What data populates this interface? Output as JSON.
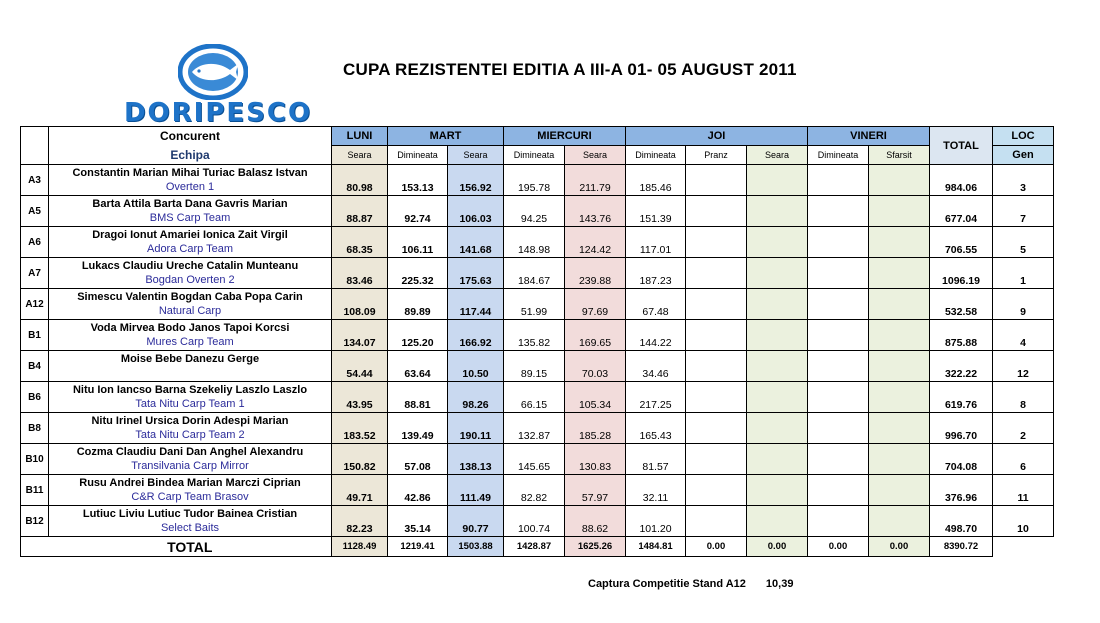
{
  "logo": {
    "brand": "DORIPESCO"
  },
  "title": "CUPA REZISTENTEI EDITIA A III-A  01- 05 AUGUST 2011",
  "headers": {
    "concurent": "Concurent",
    "echipa": "Echipa",
    "days": {
      "luni": "LUNI",
      "mart": "MART",
      "miercuri": "MIERCURI",
      "joi": "JOI",
      "vineri": "VINERI"
    },
    "total": "TOTAL",
    "loc": "LOC",
    "gen": "Gen",
    "sub": [
      "Seara",
      "Dimineata",
      "Seara",
      "Dimineata",
      "Seara",
      "Dimineata",
      "Pranz",
      "Seara",
      "Dimineata",
      "Sfarsit"
    ]
  },
  "rows": [
    {
      "code": "A3",
      "names": "Constantin Marian Mihai Turiac Balasz Istvan",
      "team": "Overten 1",
      "luni": "80.98",
      "mart_dim": "153.13",
      "mart_sea": "156.92",
      "mie_dim": "195.78",
      "mie_sea": "211.79",
      "joi_dim": "185.46",
      "total": "984.06",
      "loc": "3"
    },
    {
      "code": "A5",
      "names": "Barta Attila Barta Dana Gavris Marian",
      "team": "BMS Carp Team",
      "luni": "88.87",
      "mart_dim": "92.74",
      "mart_sea": "106.03",
      "mie_dim": "94.25",
      "mie_sea": "143.76",
      "joi_dim": "151.39",
      "total": "677.04",
      "loc": "7"
    },
    {
      "code": "A6",
      "names": "Dragoi Ionut Amariei Ionica Zait Virgil",
      "team": "Adora Carp Team",
      "luni": "68.35",
      "mart_dim": "106.11",
      "mart_sea": "141.68",
      "mie_dim": "148.98",
      "mie_sea": "124.42",
      "joi_dim": "117.01",
      "total": "706.55",
      "loc": "5"
    },
    {
      "code": "A7",
      "names": "Lukacs Claudiu Ureche Catalin Munteanu",
      "team": "Bogdan Overten 2",
      "luni": "83.46",
      "mart_dim": "225.32",
      "mart_sea": "175.63",
      "mie_dim": "184.67",
      "mie_sea": "239.88",
      "joi_dim": "187.23",
      "total": "1096.19",
      "loc": "1"
    },
    {
      "code": "A12",
      "names": "Simescu Valentin Bogdan Caba Popa Carin",
      "team": "Natural Carp",
      "luni": "108.09",
      "mart_dim": "89.89",
      "mart_sea": "117.44",
      "mie_dim": "51.99",
      "mie_sea": "97.69",
      "joi_dim": "67.48",
      "total": "532.58",
      "loc": "9"
    },
    {
      "code": "B1",
      "names": "Voda Mirvea Bodo Janos Tapoi Korcsi",
      "team": "Mures Carp Team",
      "luni": "134.07",
      "mart_dim": "125.20",
      "mart_sea": "166.92",
      "mie_dim": "135.82",
      "mie_sea": "169.65",
      "joi_dim": "144.22",
      "total": "875.88",
      "loc": "4"
    },
    {
      "code": "B4",
      "names": "Moise Bebe Danezu Gerge",
      "team": "",
      "luni": "54.44",
      "mart_dim": "63.64",
      "mart_sea": "10.50",
      "mie_dim": "89.15",
      "mie_sea": "70.03",
      "joi_dim": "34.46",
      "total": "322.22",
      "loc": "12"
    },
    {
      "code": "B6",
      "names": "Nitu Ion Iancso Barna Szekeliy Laszlo Laszlo",
      "team": "Tata Nitu Carp Team 1",
      "luni": "43.95",
      "mart_dim": "88.81",
      "mart_sea": "98.26",
      "mie_dim": "66.15",
      "mie_sea": "105.34",
      "joi_dim": "217.25",
      "total": "619.76",
      "loc": "8"
    },
    {
      "code": "B8",
      "names": "Nitu Irinel Ursica Dorin Adespi Marian",
      "team": "Tata Nitu Carp Team 2",
      "luni": "183.52",
      "mart_dim": "139.49",
      "mart_sea": "190.11",
      "mie_dim": "132.87",
      "mie_sea": "185.28",
      "joi_dim": "165.43",
      "total": "996.70",
      "loc": "2"
    },
    {
      "code": "B10",
      "names": "Cozma Claudiu Dani Dan Anghel Alexandru",
      "team": "Transilvania Carp Mirror",
      "luni": "150.82",
      "mart_dim": "57.08",
      "mart_sea": "138.13",
      "mie_dim": "145.65",
      "mie_sea": "130.83",
      "joi_dim": "81.57",
      "total": "704.08",
      "loc": "6"
    },
    {
      "code": "B11",
      "names": "Rusu Andrei Bindea Marian Marczi Ciprian",
      "team": "C&R Carp Team Brasov",
      "luni": "49.71",
      "mart_dim": "42.86",
      "mart_sea": "111.49",
      "mie_dim": "82.82",
      "mie_sea": "57.97",
      "joi_dim": "32.11",
      "total": "376.96",
      "loc": "11"
    },
    {
      "code": "B12",
      "names": "Lutiuc Liviu Lutiuc Tudor Bainea Cristian",
      "team": "Select Baits",
      "luni": "82.23",
      "mart_dim": "35.14",
      "mart_sea": "90.77",
      "mie_dim": "100.74",
      "mie_sea": "88.62",
      "joi_dim": "101.20",
      "total": "498.70",
      "loc": "10"
    }
  ],
  "totals": {
    "label": "TOTAL",
    "values": [
      "1128.49",
      "1219.41",
      "1503.88",
      "1428.87",
      "1625.26",
      "1484.81",
      "0.00",
      "0.00",
      "0.00",
      "0.00",
      "8390.72"
    ]
  },
  "footnote": {
    "label": "Captura Competitie Stand A12",
    "value": "10,39"
  },
  "colors": {
    "day_header": "#8db4e2",
    "loc_header": "#c5e0f1",
    "luni": "#ece7d8",
    "mart_seara": "#c9d9f0",
    "miercuri_seara": "#f2dcdb",
    "olive": "#ebf1de",
    "brand": "#1e73c8"
  }
}
